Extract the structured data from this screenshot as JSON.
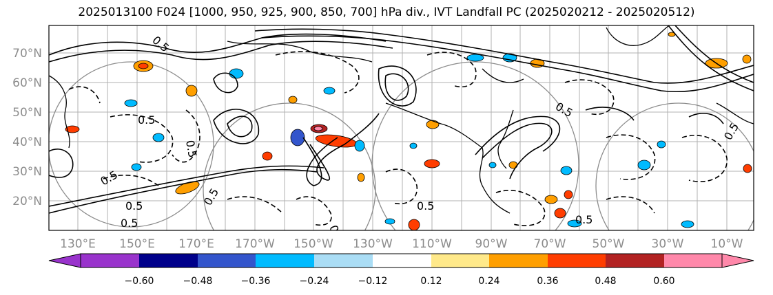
{
  "title": "2025013100 F024 [1000, 950, 925, 900, 850, 700] hPa div., IVT Landfall PC (2025020212 - 2025020512)",
  "map": {
    "lat_labels": [
      "70°N",
      "60°N",
      "50°N",
      "40°N",
      "30°N",
      "20°N"
    ],
    "lon_labels": [
      "130°E",
      "150°E",
      "170°E",
      "170°W",
      "150°W",
      "130°W",
      "110°W",
      "90°W",
      "70°W",
      "50°W",
      "30°W",
      "10°W"
    ],
    "contour_label": "0.5"
  },
  "colorbar": {
    "tick_labels": [
      "−0.60",
      "−0.48",
      "−0.36",
      "−0.24",
      "−0.12",
      "0.12",
      "0.24",
      "0.36",
      "0.48",
      "0.60"
    ],
    "under_color": "#9933cc",
    "over_color": "#ff88aa",
    "bins": [
      "#00008b",
      "#3355cc",
      "#00bbff",
      "#aaddf5",
      "#ffffff",
      "#ffffff",
      "#ffe98a",
      "#ff9f00",
      "#ff3d00",
      "#b22222"
    ]
  }
}
